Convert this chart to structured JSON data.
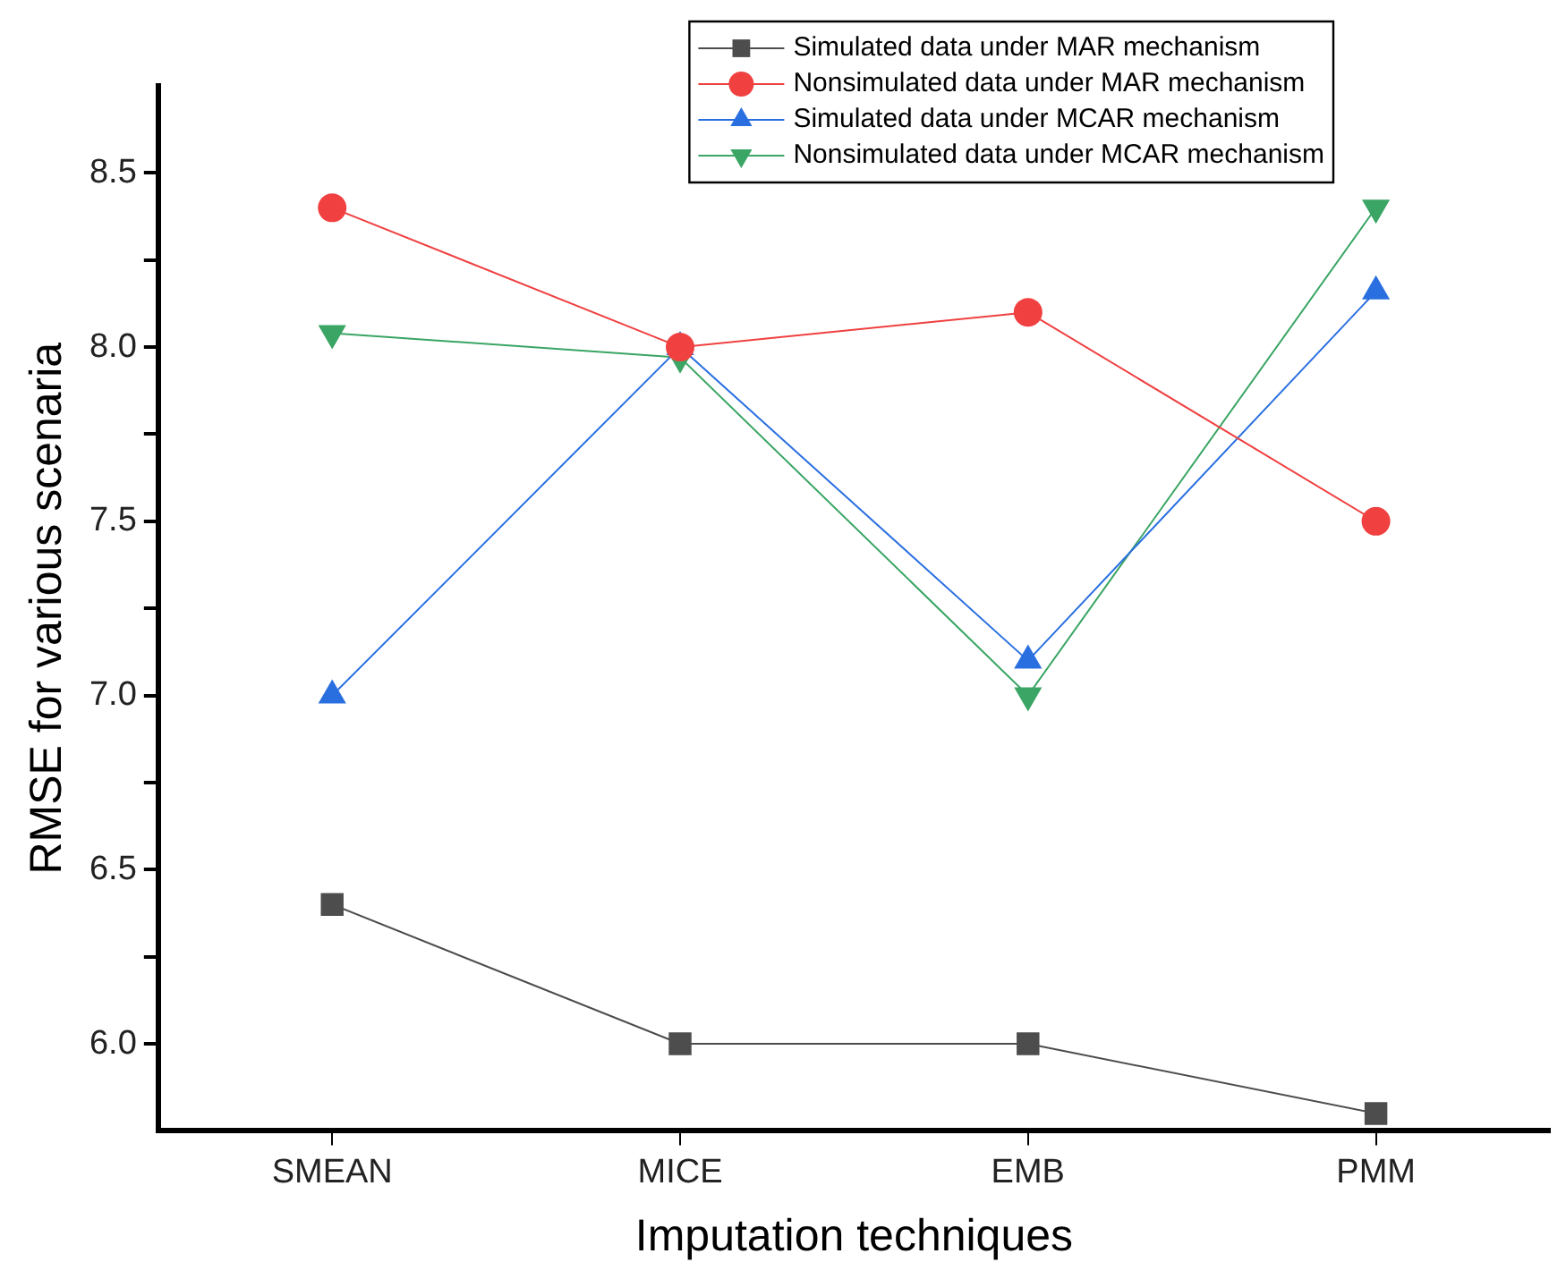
{
  "chart_data": {
    "type": "line",
    "xlabel": "Imputation techniques",
    "ylabel": "RMSE for various scenaria",
    "categories": [
      "SMEAN",
      "MICE",
      "EMB",
      "PMM"
    ],
    "series": [
      {
        "name": "Simulated data under MAR mechanism",
        "color": "#4d4d4d",
        "marker": "square",
        "values": [
          6.4,
          6.0,
          6.0,
          5.8
        ]
      },
      {
        "name": "Nonsimulated data under MAR mechanism",
        "color": "#f04040",
        "marker": "circle",
        "values": [
          8.4,
          8.0,
          8.1,
          7.5
        ]
      },
      {
        "name": "Simulated data under MCAR mechanism",
        "color": "#2a6fe0",
        "marker": "triangle",
        "values": [
          7.0,
          8.0,
          7.1,
          8.16
        ]
      },
      {
        "name": "Nonsimulated data under MCAR mechanism",
        "color": "#3aa564",
        "marker": "triangle-down",
        "values": [
          8.04,
          7.97,
          7.0,
          8.4
        ]
      }
    ],
    "ylim": [
      5.75,
      8.75
    ],
    "yticks": [
      {
        "value": 6.0,
        "label": "6.0"
      },
      {
        "value": 6.25,
        "label": null
      },
      {
        "value": 6.5,
        "label": "6.5"
      },
      {
        "value": 6.75,
        "label": null
      },
      {
        "value": 7.0,
        "label": "7.0"
      },
      {
        "value": 7.25,
        "label": null
      },
      {
        "value": 7.5,
        "label": "7.5"
      },
      {
        "value": 7.75,
        "label": null
      },
      {
        "value": 8.0,
        "label": "8.0"
      },
      {
        "value": 8.25,
        "label": null
      },
      {
        "value": 8.5,
        "label": "8.5"
      }
    ],
    "grid": false,
    "legend": "top right",
    "line_style": "solid"
  }
}
